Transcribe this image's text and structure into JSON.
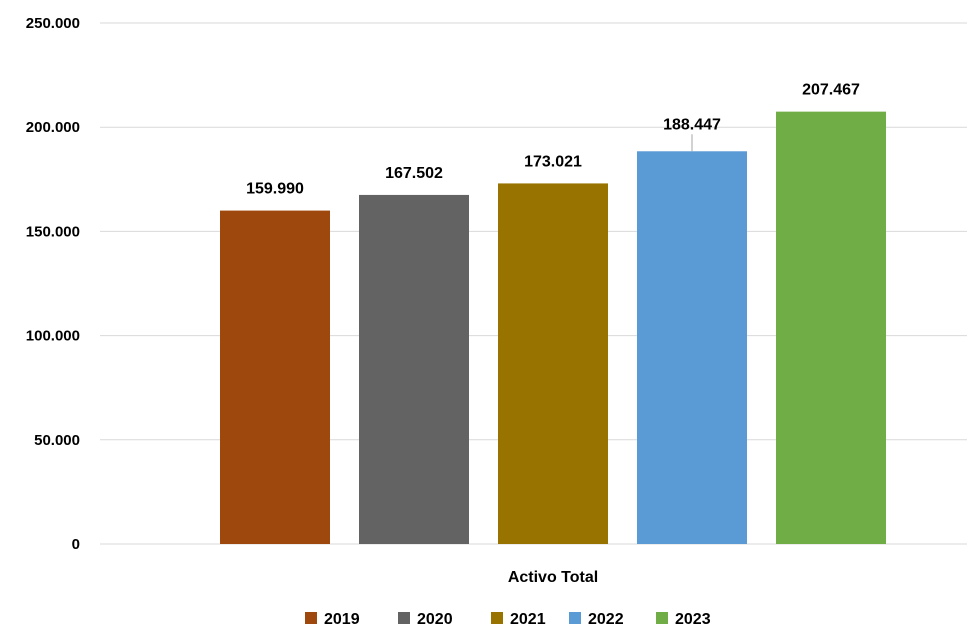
{
  "chart_data": {
    "type": "bar",
    "categories": [
      "Activo Total"
    ],
    "series": [
      {
        "name": "2019",
        "values": [
          159990
        ],
        "color": "#9E480E",
        "label": "159.990"
      },
      {
        "name": "2020",
        "values": [
          167502
        ],
        "color": "#636363",
        "label": "167.502"
      },
      {
        "name": "2021",
        "values": [
          173021
        ],
        "color": "#997300",
        "label": "173.021"
      },
      {
        "name": "2022",
        "values": [
          188447
        ],
        "color": "#5B9BD5",
        "label": "188.447"
      },
      {
        "name": "2023",
        "values": [
          207467
        ],
        "color": "#70AD47",
        "label": "207.467"
      }
    ],
    "ylim": [
      0,
      250000
    ],
    "yticks": [
      0,
      50000,
      100000,
      150000,
      200000,
      250000
    ],
    "ytick_labels": [
      "0",
      "50.000",
      "100.000",
      "150.000",
      "200.000",
      "250.000"
    ],
    "title": "",
    "xlabel": "",
    "ylabel": "",
    "grid": true,
    "legend": "bottom"
  }
}
